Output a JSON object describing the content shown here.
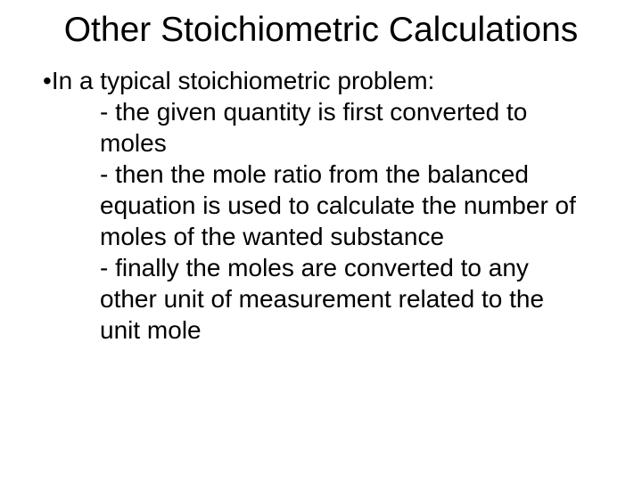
{
  "title": "Other Stoichiometric Calculations",
  "bullet": {
    "marker": "•",
    "text": "In a typical stoichiometric problem:"
  },
  "subitems": [
    "- the given quantity is first converted to moles",
    "- then the mole ratio from the balanced equation is used to calculate the number of moles of the wanted substance",
    "- finally the moles are converted to any other unit of measurement related to the unit mole"
  ],
  "colors": {
    "background": "#ffffff",
    "text": "#000000"
  },
  "typography": {
    "title_fontsize": 39,
    "body_fontsize": 28,
    "font_family": "Arial"
  }
}
